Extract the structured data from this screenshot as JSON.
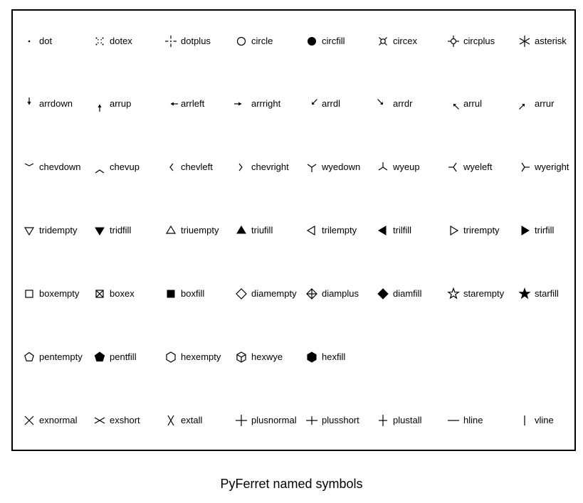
{
  "caption": "PyFerret named symbols",
  "rows": [
    [
      "dot",
      "dotex",
      "dotplus",
      "circle",
      "circfill",
      "circex",
      "circplus",
      "asterisk"
    ],
    [
      "arrdown",
      "arrup",
      "arrleft",
      "arrright",
      "arrdl",
      "arrdr",
      "arrul",
      "arrur"
    ],
    [
      "chevdown",
      "chevup",
      "chevleft",
      "chevright",
      "wyedown",
      "wyeup",
      "wyeleft",
      "wyeright"
    ],
    [
      "tridempty",
      "tridfill",
      "triuempty",
      "triufill",
      "trilempty",
      "trilfill",
      "trirempty",
      "trirfill"
    ],
    [
      "boxempty",
      "boxex",
      "boxfill",
      "diamempty",
      "diamplus",
      "diamfill",
      "starempty",
      "starfill"
    ],
    [
      "pentempty",
      "pentfill",
      "hexempty",
      "hexwye",
      "hexfill"
    ],
    [
      "exnormal",
      "exshort",
      "extall",
      "plusnormal",
      "plusshort",
      "plustall",
      "hline",
      "vline"
    ]
  ]
}
